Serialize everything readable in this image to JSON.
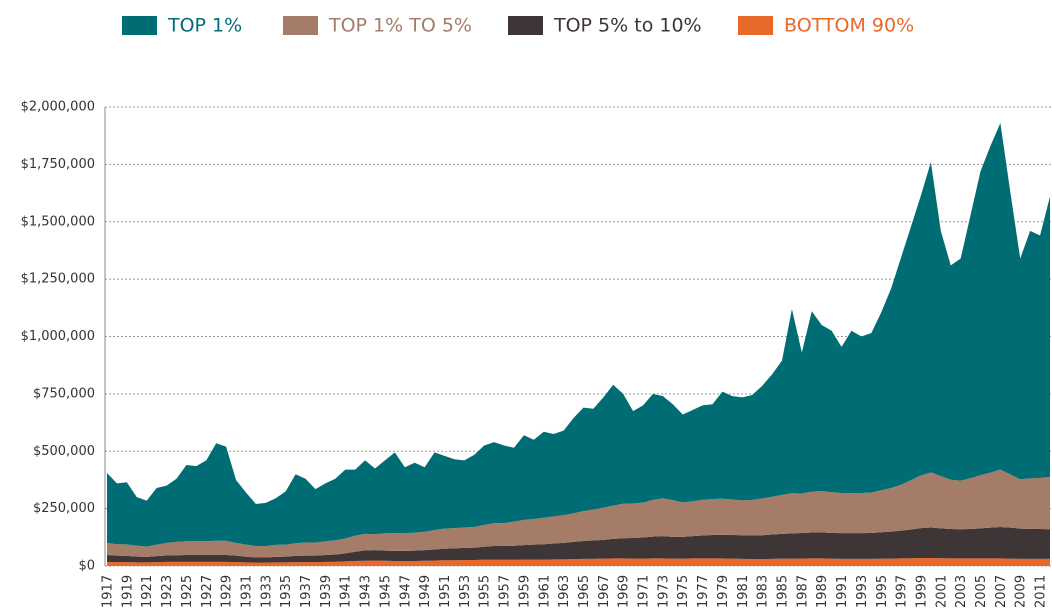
{
  "chart_data": {
    "type": "stacked-area",
    "categories": [
      "1917",
      null,
      "1919",
      null,
      "1921",
      null,
      "1923",
      null,
      "1925",
      null,
      "1927",
      null,
      "1929",
      null,
      "1931",
      null,
      "1933",
      null,
      "1935",
      null,
      "1937",
      null,
      "1939",
      null,
      "1941",
      null,
      "1943",
      null,
      "1945",
      null,
      "1947",
      null,
      "1949",
      null,
      "1951",
      null,
      "1953",
      null,
      "1955",
      null,
      "1957",
      null,
      "1959",
      null,
      "1961",
      null,
      "1963",
      null,
      "1965",
      null,
      "1967",
      null,
      "1969",
      null,
      "1971",
      null,
      "1973",
      null,
      "1975",
      null,
      "1977",
      null,
      "1979",
      null,
      "1981",
      null,
      "1983",
      null,
      "1985",
      null,
      "1987",
      null,
      "1989",
      null,
      "1991",
      null,
      "1993",
      null,
      "1995",
      null,
      "1997",
      null,
      "1999",
      null,
      "2001",
      null,
      "2003",
      null,
      "2005",
      null,
      "2007",
      null,
      "2009",
      null,
      "2011",
      null
    ],
    "series": [
      {
        "name": "TOP 1%",
        "color": "#006d75",
        "values": [
          305000,
          265000,
          271000,
          211000,
          200000,
          247000,
          249000,
          275000,
          332000,
          327000,
          352000,
          425000,
          410000,
          275000,
          227000,
          183000,
          188000,
          203000,
          232000,
          301000,
          277000,
          233000,
          252000,
          268000,
          300000,
          288000,
          320000,
          286000,
          318000,
          351000,
          286000,
          305000,
          281000,
          338000,
          317000,
          300000,
          292000,
          315000,
          346000,
          353000,
          338000,
          322000,
          369000,
          345000,
          375000,
          359000,
          369000,
          415000,
          451000,
          439000,
          481000,
          527000,
          479000,
          403000,
          424000,
          462000,
          445000,
          418000,
          383000,
          398000,
          412000,
          413000,
          467000,
          450000,
          449000,
          457000,
          491000,
          533000,
          585000,
          803000,
          614000,
          786000,
          723000,
          703000,
          637000,
          707000,
          682000,
          695000,
          775000,
          870000,
          991000,
          1106000,
          1220000,
          1352000,
          1068000,
          934000,
          968000,
          1147000,
          1324000,
          1423000,
          1510000,
          1231000,
          962000,
          1078000,
          1056000,
          1222000
        ]
      },
      {
        "name": "TOP 1% TO 5%",
        "color": "#a57c67",
        "values": [
          52000,
          50000,
          50000,
          48000,
          45000,
          50000,
          55000,
          58000,
          60000,
          60000,
          60000,
          62000,
          62000,
          55000,
          52000,
          50000,
          50000,
          52000,
          52000,
          55000,
          58000,
          57000,
          60000,
          62000,
          65000,
          70000,
          72000,
          70000,
          75000,
          78000,
          78000,
          78000,
          80000,
          85000,
          88000,
          88000,
          89000,
          90000,
          95000,
          100000,
          100000,
          105000,
          110000,
          112000,
          115000,
          118000,
          120000,
          125000,
          130000,
          135000,
          140000,
          145000,
          150000,
          150000,
          152000,
          160000,
          165000,
          160000,
          150000,
          152000,
          155000,
          157000,
          157000,
          155000,
          152000,
          155000,
          160000,
          165000,
          170000,
          175000,
          172000,
          178000,
          180000,
          178000,
          175000,
          175000,
          175000,
          176000,
          183000,
          190000,
          200000,
          215000,
          230000,
          240000,
          228000,
          215000,
          212000,
          222000,
          232000,
          240000,
          250000,
          232000,
          215000,
          220000,
          223000,
          228000
        ]
      },
      {
        "name": "TOP 5% to 10%",
        "color": "#3d3536",
        "values": [
          30000,
          28000,
          27000,
          25000,
          24000,
          26000,
          28000,
          29000,
          30000,
          30000,
          30000,
          30000,
          30000,
          28000,
          25000,
          22000,
          22000,
          24000,
          25000,
          27000,
          28000,
          28000,
          30000,
          32000,
          35000,
          40000,
          45000,
          45000,
          44000,
          44000,
          44000,
          45000,
          46000,
          48000,
          50000,
          52000,
          53000,
          54000,
          57000,
          60000,
          60000,
          61000,
          63000,
          65000,
          67000,
          69000,
          72000,
          75000,
          78000,
          80000,
          82000,
          85000,
          88000,
          90000,
          92000,
          95000,
          97000,
          95000,
          95000,
          97000,
          100000,
          102000,
          103000,
          103000,
          103000,
          103000,
          104000,
          106000,
          108000,
          110000,
          112000,
          113000,
          114000,
          112000,
          112000,
          112000,
          112000,
          113000,
          115000,
          118000,
          121000,
          125000,
          130000,
          133000,
          130000,
          128000,
          127000,
          128000,
          131000,
          134000,
          137000,
          135000,
          132000,
          131000,
          130000,
          129000
        ]
      },
      {
        "name": "BOTTOM 90%",
        "color": "#e8692a",
        "values": [
          18000,
          17000,
          17000,
          16000,
          16000,
          17000,
          18000,
          18000,
          18000,
          18000,
          18000,
          18000,
          18000,
          17000,
          16000,
          15000,
          15000,
          16000,
          16000,
          17000,
          17000,
          17000,
          18000,
          18000,
          20000,
          22000,
          23000,
          24000,
          23000,
          22000,
          22000,
          22000,
          23000,
          24000,
          25000,
          25000,
          26000,
          26000,
          27000,
          27000,
          27000,
          27000,
          28000,
          28000,
          28000,
          29000,
          29000,
          30000,
          31000,
          31000,
          32000,
          33000,
          33000,
          32000,
          32000,
          33000,
          33000,
          32000,
          32000,
          33000,
          33000,
          33000,
          33000,
          32000,
          31000,
          30000,
          30000,
          31000,
          32000,
          32000,
          32000,
          33000,
          33000,
          32000,
          31000,
          31000,
          31000,
          31000,
          32000,
          32000,
          33000,
          34000,
          35000,
          35000,
          34000,
          33000,
          33000,
          33000,
          33000,
          33000,
          33000,
          32000,
          31000,
          31000,
          31000,
          31000
        ]
      }
    ],
    "ylim": [
      0,
      2000000
    ],
    "yticks": [
      {
        "value": 0,
        "label": "$0"
      },
      {
        "value": 250000,
        "label": "$250,000"
      },
      {
        "value": 500000,
        "label": "$500,000"
      },
      {
        "value": 750000,
        "label": "$750,000"
      },
      {
        "value": 1000000,
        "label": "$1,000,000"
      },
      {
        "value": 1250000,
        "label": "$1,250,000"
      },
      {
        "value": 1500000,
        "label": "$1,500,000"
      },
      {
        "value": 1750000,
        "label": "$1,750,000"
      },
      {
        "value": 2000000,
        "label": "$2,000,000"
      }
    ],
    "grid": true,
    "legend": "top"
  }
}
